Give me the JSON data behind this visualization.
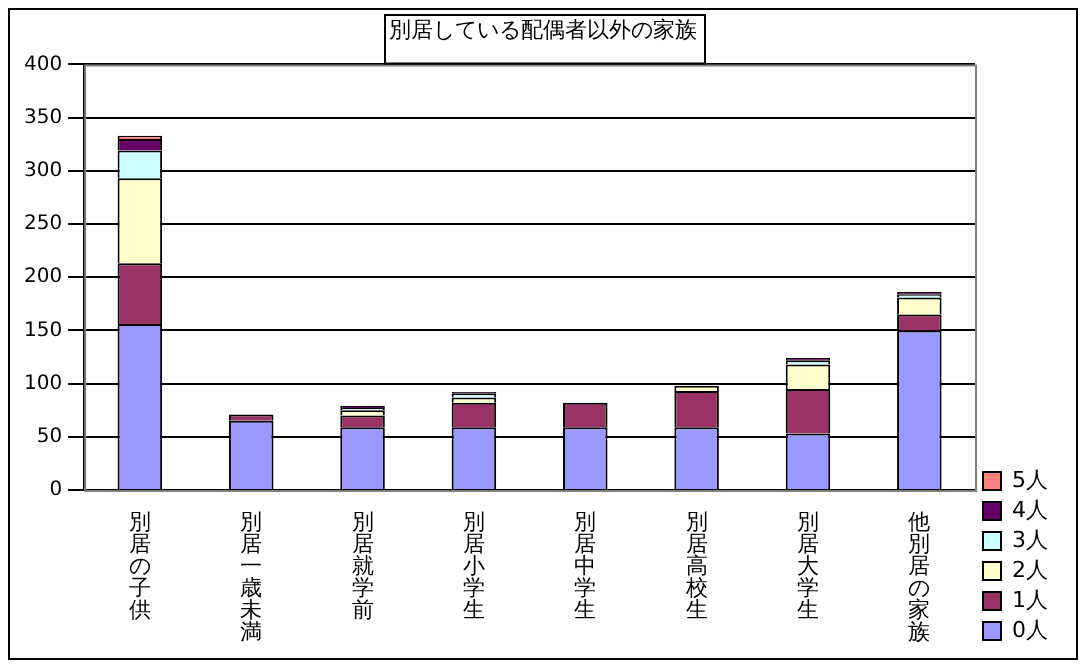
{
  "chart_data": {
    "type": "bar",
    "title": "別居している配偶者以外の家族",
    "stacked": true,
    "categories": [
      "別居の子供",
      "別居一歳未満",
      "別居就学前",
      "別居小学生",
      "別居中学生",
      "別居高校生",
      "別居大学生",
      "他別居の家族"
    ],
    "series": [
      {
        "name": "0人",
        "color": "#9999ff",
        "values": [
          156,
          65,
          59,
          59,
          59,
          59,
          53,
          150
        ]
      },
      {
        "name": "1人",
        "color": "#993366",
        "values": [
          57,
          6,
          11,
          23,
          23,
          34,
          42,
          15
        ]
      },
      {
        "name": "2人",
        "color": "#ffffcc",
        "values": [
          80,
          0,
          5,
          5,
          0,
          5,
          23,
          16
        ]
      },
      {
        "name": "3人",
        "color": "#ccffff",
        "values": [
          26,
          0,
          2,
          4,
          0,
          null,
          4,
          3
        ]
      },
      {
        "name": "4人",
        "color": "#660066",
        "values": [
          11,
          0,
          2,
          1,
          0,
          0,
          2,
          2
        ]
      },
      {
        "name": "5人",
        "color": "#ff8080",
        "values": [
          3,
          0,
          0,
          0,
          0,
          0,
          0,
          0
        ]
      }
    ],
    "ylim": [
      0,
      400
    ],
    "yticks": [
      0,
      50,
      100,
      150,
      200,
      250,
      300,
      350,
      400
    ],
    "grid": "y",
    "legend": "right"
  }
}
